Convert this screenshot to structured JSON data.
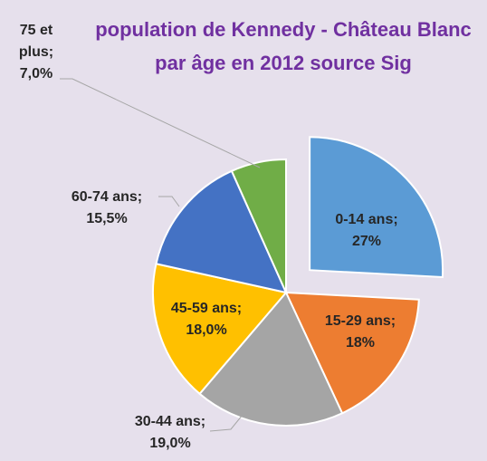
{
  "chart_data": {
    "type": "pie",
    "title": "population de Kennedy - Château Blanc par âge en 2012 source Sig",
    "categories": [
      "0-14 ans",
      "15-29 ans",
      "30-44 ans",
      "45-59 ans",
      "60-74 ans",
      "75 et plus"
    ],
    "values": [
      27,
      18,
      19,
      18,
      15.5,
      7
    ],
    "value_labels": [
      "27%",
      "18%",
      "19,0%",
      "18,0%",
      "15,5%",
      "7,0%"
    ],
    "label_separator": ";",
    "colors": [
      "#5b9bd5",
      "#ed7d31",
      "#a5a5a5",
      "#ffc000",
      "#4472c4",
      "#70ad47"
    ],
    "exploded": [
      0
    ]
  }
}
